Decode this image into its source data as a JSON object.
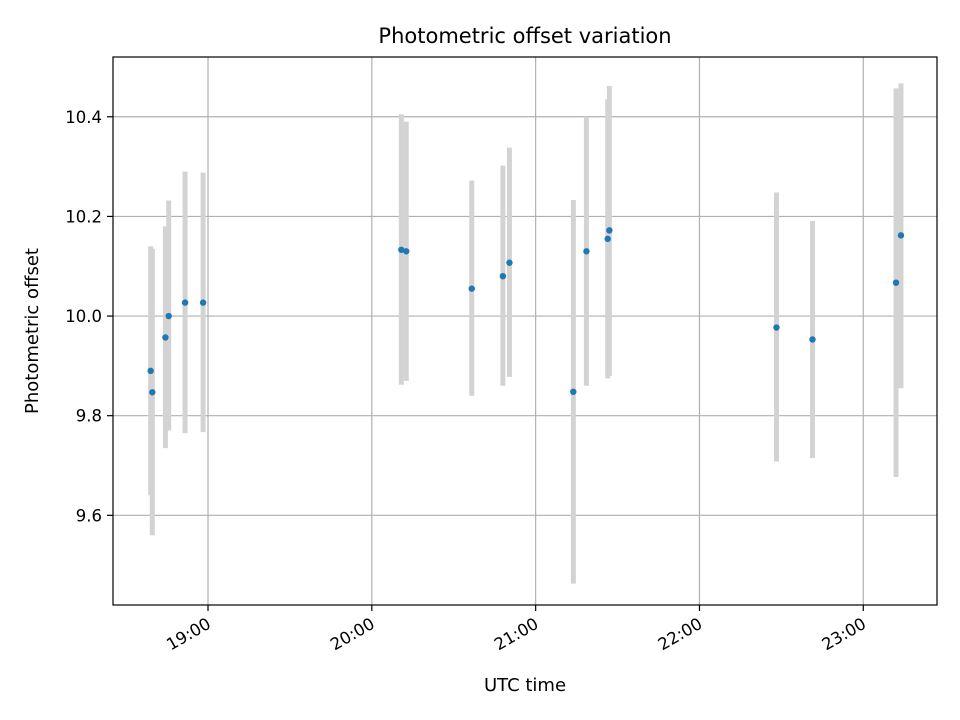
{
  "chart_data": {
    "type": "scatter",
    "title": "Photometric offset variation",
    "xlabel": "UTC time",
    "ylabel": "Photometric offset",
    "x_unit": "hours UTC",
    "xlim": [
      18.42,
      23.45
    ],
    "ylim": [
      9.42,
      10.52
    ],
    "grid": true,
    "x_ticks": [
      {
        "value": 19,
        "label": "19:00"
      },
      {
        "value": 20,
        "label": "20:00"
      },
      {
        "value": 21,
        "label": "21:00"
      },
      {
        "value": 22,
        "label": "22:00"
      },
      {
        "value": 23,
        "label": "23:00"
      }
    ],
    "y_ticks": [
      {
        "value": 9.6,
        "label": "9.6"
      },
      {
        "value": 9.8,
        "label": "9.8"
      },
      {
        "value": 10.0,
        "label": "10.0"
      },
      {
        "value": 10.2,
        "label": "10.2"
      },
      {
        "value": 10.4,
        "label": "10.4"
      }
    ],
    "series": [
      {
        "name": "offset",
        "marker_color": "#1f77b4",
        "errorbar_color": "#d3d3d3",
        "points": [
          {
            "x": 18.65,
            "y": 9.89,
            "lo": 9.64,
            "hi": 10.14
          },
          {
            "x": 18.66,
            "y": 9.847,
            "lo": 9.56,
            "hi": 10.135
          },
          {
            "x": 18.74,
            "y": 9.957,
            "lo": 9.735,
            "hi": 10.18
          },
          {
            "x": 18.76,
            "y": 10.0,
            "lo": 9.77,
            "hi": 10.232
          },
          {
            "x": 18.86,
            "y": 10.027,
            "lo": 9.765,
            "hi": 10.29
          },
          {
            "x": 18.97,
            "y": 10.027,
            "lo": 9.767,
            "hi": 10.288
          },
          {
            "x": 20.18,
            "y": 10.133,
            "lo": 9.862,
            "hi": 10.405
          },
          {
            "x": 20.21,
            "y": 10.13,
            "lo": 9.87,
            "hi": 10.39
          },
          {
            "x": 20.61,
            "y": 10.055,
            "lo": 9.84,
            "hi": 10.272
          },
          {
            "x": 20.8,
            "y": 10.08,
            "lo": 9.86,
            "hi": 10.302
          },
          {
            "x": 20.84,
            "y": 10.107,
            "lo": 9.878,
            "hi": 10.338
          },
          {
            "x": 21.23,
            "y": 9.848,
            "lo": 9.463,
            "hi": 10.233
          },
          {
            "x": 21.31,
            "y": 10.13,
            "lo": 9.86,
            "hi": 10.4
          },
          {
            "x": 21.44,
            "y": 10.155,
            "lo": 9.875,
            "hi": 10.435
          },
          {
            "x": 21.45,
            "y": 10.172,
            "lo": 9.88,
            "hi": 10.462
          },
          {
            "x": 22.47,
            "y": 9.977,
            "lo": 9.708,
            "hi": 10.248
          },
          {
            "x": 22.69,
            "y": 9.953,
            "lo": 9.715,
            "hi": 10.191
          },
          {
            "x": 23.2,
            "y": 10.067,
            "lo": 9.677,
            "hi": 10.457
          },
          {
            "x": 23.23,
            "y": 10.162,
            "lo": 9.855,
            "hi": 10.467
          }
        ]
      }
    ]
  }
}
